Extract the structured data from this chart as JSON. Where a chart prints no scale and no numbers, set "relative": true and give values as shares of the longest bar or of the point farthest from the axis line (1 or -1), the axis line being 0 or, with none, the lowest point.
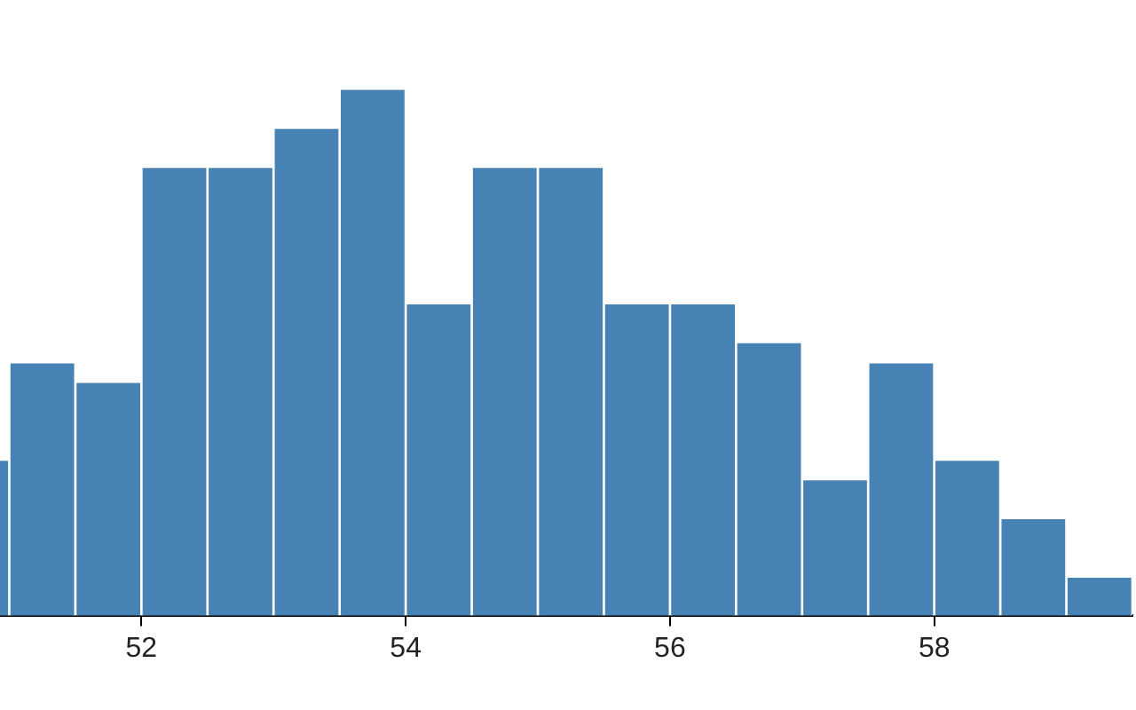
{
  "chart_data": {
    "type": "bar",
    "relative": true,
    "color": "#4682b4",
    "x": [
      50.75,
      51.25,
      51.75,
      52.25,
      52.75,
      53.25,
      53.75,
      54.25,
      54.75,
      55.25,
      55.75,
      56.25,
      56.75,
      57.25,
      57.75,
      58.25,
      58.75,
      59.25
    ],
    "values": [
      0.296,
      0.481,
      0.444,
      0.852,
      0.852,
      0.926,
      1,
      0.593,
      0.852,
      0.852,
      0.593,
      0.593,
      0.519,
      0.259,
      0.481,
      0.296,
      0.185,
      0.074
    ],
    "xlim": [
      50.5,
      59.5
    ],
    "xticks": [
      52,
      54,
      56,
      58
    ],
    "grid": false,
    "legend": false
  }
}
